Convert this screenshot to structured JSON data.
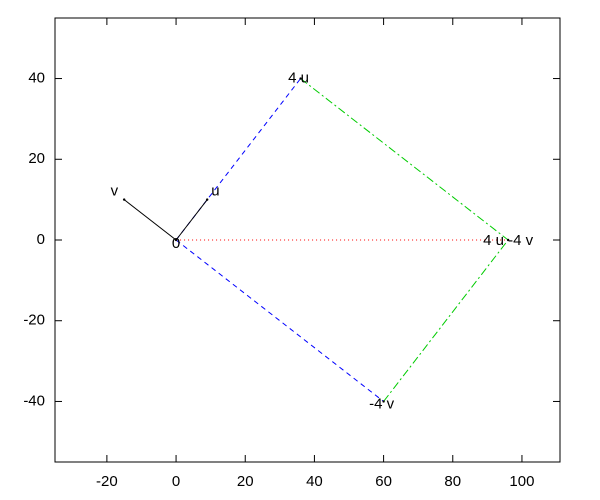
{
  "chart_data": {
    "type": "vector",
    "xlim": [
      -35,
      111
    ],
    "ylim": [
      -55,
      55
    ],
    "xticks": [
      -20,
      0,
      20,
      40,
      60,
      80,
      100
    ],
    "yticks": [
      -40,
      -20,
      0,
      20,
      40
    ],
    "grid": false,
    "segments": [
      {
        "from": [
          0,
          0
        ],
        "to": [
          36,
          40
        ],
        "color": "#0000ff",
        "dash": "dashed"
      },
      {
        "from": [
          0,
          0
        ],
        "to": [
          60,
          -40
        ],
        "color": "#0000ff",
        "dash": "dashed"
      },
      {
        "from": [
          36,
          40
        ],
        "to": [
          96,
          0
        ],
        "color": "#00cc00",
        "dash": "dashdot"
      },
      {
        "from": [
          60,
          -40
        ],
        "to": [
          96,
          0
        ],
        "color": "#00cc00",
        "dash": "dashdot"
      },
      {
        "from": [
          0,
          0
        ],
        "to": [
          96,
          0
        ],
        "color": "#ff0000",
        "dash": "dotted"
      },
      {
        "from": [
          0,
          0
        ],
        "to": [
          9,
          10
        ],
        "color": "#000000",
        "dash": "solid"
      },
      {
        "from": [
          0,
          0
        ],
        "to": [
          -15,
          10
        ],
        "color": "#000000",
        "dash": "solid"
      }
    ],
    "points": [
      {
        "label": "0",
        "x": 0,
        "y": 0
      },
      {
        "label": "u",
        "x": 9,
        "y": 10
      },
      {
        "label": "v",
        "x": -15,
        "y": 10
      },
      {
        "label": "4 u",
        "x": 36,
        "y": 40
      },
      {
        "label": "-4 v",
        "x": 60,
        "y": -40
      },
      {
        "label": "4 u -4 v",
        "x": 96,
        "y": 0
      }
    ]
  }
}
